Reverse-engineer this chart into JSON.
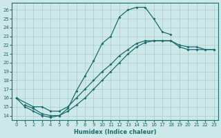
{
  "xlabel": "Humidex (Indice chaleur)",
  "xlim": [
    -0.5,
    23.5
  ],
  "ylim": [
    13.5,
    26.8
  ],
  "yticks": [
    14,
    15,
    16,
    17,
    18,
    19,
    20,
    21,
    22,
    23,
    24,
    25,
    26
  ],
  "xticks": [
    0,
    1,
    2,
    3,
    4,
    5,
    6,
    7,
    8,
    9,
    10,
    11,
    12,
    13,
    14,
    15,
    16,
    17,
    18,
    19,
    20,
    21,
    22,
    23
  ],
  "bg_color": "#cde8e8",
  "grid_color": "#aacccc",
  "line_color": "#1a6b6b",
  "line1_x": [
    0,
    1,
    2,
    3,
    4,
    5,
    6,
    7,
    8,
    9,
    10,
    11,
    12,
    13,
    14,
    15,
    16,
    17,
    18
  ],
  "line1_y": [
    16,
    15,
    14.5,
    14,
    13.8,
    14,
    14.8,
    16.8,
    18.5,
    20.2,
    22.2,
    23.0,
    25.2,
    26.0,
    26.3,
    26.3,
    25.0,
    23.5,
    23.2
  ],
  "line2_x": [
    0,
    2,
    3,
    4,
    5,
    6,
    7,
    8,
    9,
    10,
    11,
    12,
    13,
    14,
    15,
    16,
    17,
    18,
    19,
    20,
    21,
    22,
    23
  ],
  "line2_y": [
    16,
    15,
    15,
    14.5,
    14.5,
    15,
    16,
    17,
    18,
    19,
    19.8,
    20.8,
    21.5,
    22.2,
    22.5,
    22.5,
    22.5,
    22.5,
    22,
    21.8,
    21.8,
    21.5,
    21.5
  ],
  "line3_x": [
    1,
    2,
    3,
    4,
    5,
    6,
    7,
    8,
    9,
    10,
    11,
    12,
    13,
    14,
    15,
    16,
    17,
    18,
    19,
    20,
    21,
    22,
    23
  ],
  "line3_y": [
    15.2,
    14.8,
    14.2,
    14.0,
    14.0,
    14.5,
    15.2,
    16.0,
    17.0,
    18.0,
    19.0,
    20.0,
    21.0,
    21.8,
    22.3,
    22.5,
    22.5,
    22.5,
    21.8,
    21.5,
    21.5,
    21.5,
    21.5
  ]
}
